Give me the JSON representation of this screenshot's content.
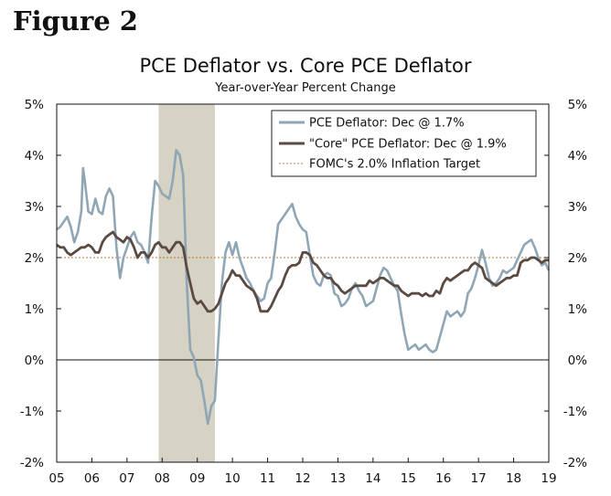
{
  "figure_label": "Figure 2",
  "chart_data": {
    "type": "line",
    "title": "PCE Deflator vs. Core PCE Deflator",
    "subtitle": "Year-over-Year Percent Change",
    "xlabel": "",
    "ylabel": "",
    "x_ticks": [
      "05",
      "06",
      "07",
      "08",
      "09",
      "10",
      "11",
      "12",
      "13",
      "14",
      "15",
      "16",
      "17",
      "18",
      "19"
    ],
    "y_ticks": [
      "5%",
      "4%",
      "3%",
      "2%",
      "1%",
      "0%",
      "-1%",
      "-2%"
    ],
    "xlim": [
      2005.0,
      2019.0
    ],
    "ylim": [
      -2,
      5
    ],
    "grid": false,
    "legend_position": "top-right",
    "recession_shading": {
      "start": 2007.9,
      "end": 2009.5,
      "color": "#d6d2c4"
    },
    "series": [
      {
        "name": "PCE Deflator: Dec @ 1.7%",
        "color": "#8fa6b4",
        "points": [
          [
            2005.0,
            2.55
          ],
          [
            2005.1,
            2.6
          ],
          [
            2005.2,
            2.7
          ],
          [
            2005.3,
            2.8
          ],
          [
            2005.4,
            2.6
          ],
          [
            2005.5,
            2.3
          ],
          [
            2005.6,
            2.5
          ],
          [
            2005.7,
            2.9
          ],
          [
            2005.75,
            3.75
          ],
          [
            2005.8,
            3.5
          ],
          [
            2005.9,
            2.9
          ],
          [
            2006.0,
            2.85
          ],
          [
            2006.1,
            3.15
          ],
          [
            2006.2,
            2.9
          ],
          [
            2006.3,
            2.85
          ],
          [
            2006.4,
            3.2
          ],
          [
            2006.5,
            3.35
          ],
          [
            2006.6,
            3.2
          ],
          [
            2006.7,
            2.2
          ],
          [
            2006.8,
            1.6
          ],
          [
            2006.9,
            2.0
          ],
          [
            2007.0,
            2.2
          ],
          [
            2007.1,
            2.4
          ],
          [
            2007.2,
            2.5
          ],
          [
            2007.3,
            2.3
          ],
          [
            2007.4,
            2.25
          ],
          [
            2007.5,
            2.1
          ],
          [
            2007.6,
            1.9
          ],
          [
            2007.7,
            2.8
          ],
          [
            2007.8,
            3.5
          ],
          [
            2007.9,
            3.4
          ],
          [
            2008.0,
            3.25
          ],
          [
            2008.1,
            3.2
          ],
          [
            2008.2,
            3.15
          ],
          [
            2008.3,
            3.5
          ],
          [
            2008.4,
            4.1
          ],
          [
            2008.5,
            4.0
          ],
          [
            2008.6,
            3.6
          ],
          [
            2008.7,
            1.5
          ],
          [
            2008.8,
            0.2
          ],
          [
            2008.9,
            0.05
          ],
          [
            2009.0,
            -0.3
          ],
          [
            2009.1,
            -0.4
          ],
          [
            2009.2,
            -0.8
          ],
          [
            2009.3,
            -1.25
          ],
          [
            2009.4,
            -0.9
          ],
          [
            2009.5,
            -0.8
          ],
          [
            2009.6,
            0.4
          ],
          [
            2009.7,
            1.5
          ],
          [
            2009.8,
            2.1
          ],
          [
            2009.9,
            2.3
          ],
          [
            2010.0,
            2.05
          ],
          [
            2010.1,
            2.3
          ],
          [
            2010.2,
            2.0
          ],
          [
            2010.3,
            1.8
          ],
          [
            2010.4,
            1.6
          ],
          [
            2010.5,
            1.5
          ],
          [
            2010.6,
            1.35
          ],
          [
            2010.7,
            1.25
          ],
          [
            2010.8,
            1.15
          ],
          [
            2010.9,
            1.2
          ],
          [
            2011.0,
            1.5
          ],
          [
            2011.1,
            1.6
          ],
          [
            2011.2,
            2.1
          ],
          [
            2011.3,
            2.65
          ],
          [
            2011.4,
            2.75
          ],
          [
            2011.5,
            2.85
          ],
          [
            2011.6,
            2.95
          ],
          [
            2011.7,
            3.05
          ],
          [
            2011.8,
            2.8
          ],
          [
            2011.9,
            2.65
          ],
          [
            2012.0,
            2.55
          ],
          [
            2012.1,
            2.5
          ],
          [
            2012.2,
            2.05
          ],
          [
            2012.3,
            1.65
          ],
          [
            2012.4,
            1.5
          ],
          [
            2012.5,
            1.45
          ],
          [
            2012.6,
            1.65
          ],
          [
            2012.7,
            1.7
          ],
          [
            2012.8,
            1.65
          ],
          [
            2012.9,
            1.3
          ],
          [
            2013.0,
            1.25
          ],
          [
            2013.1,
            1.05
          ],
          [
            2013.2,
            1.1
          ],
          [
            2013.3,
            1.2
          ],
          [
            2013.4,
            1.4
          ],
          [
            2013.5,
            1.5
          ],
          [
            2013.6,
            1.35
          ],
          [
            2013.7,
            1.25
          ],
          [
            2013.8,
            1.05
          ],
          [
            2013.9,
            1.1
          ],
          [
            2014.0,
            1.15
          ],
          [
            2014.1,
            1.4
          ],
          [
            2014.2,
            1.65
          ],
          [
            2014.3,
            1.8
          ],
          [
            2014.4,
            1.75
          ],
          [
            2014.5,
            1.6
          ],
          [
            2014.6,
            1.45
          ],
          [
            2014.7,
            1.35
          ],
          [
            2014.8,
            0.9
          ],
          [
            2014.9,
            0.5
          ],
          [
            2015.0,
            0.2
          ],
          [
            2015.1,
            0.25
          ],
          [
            2015.2,
            0.3
          ],
          [
            2015.3,
            0.2
          ],
          [
            2015.4,
            0.25
          ],
          [
            2015.5,
            0.3
          ],
          [
            2015.6,
            0.2
          ],
          [
            2015.7,
            0.15
          ],
          [
            2015.8,
            0.2
          ],
          [
            2015.9,
            0.45
          ],
          [
            2016.0,
            0.7
          ],
          [
            2016.1,
            0.95
          ],
          [
            2016.2,
            0.85
          ],
          [
            2016.3,
            0.9
          ],
          [
            2016.4,
            0.95
          ],
          [
            2016.5,
            0.85
          ],
          [
            2016.6,
            0.95
          ],
          [
            2016.7,
            1.3
          ],
          [
            2016.8,
            1.4
          ],
          [
            2016.9,
            1.6
          ],
          [
            2017.0,
            1.85
          ],
          [
            2017.1,
            2.15
          ],
          [
            2017.2,
            1.9
          ],
          [
            2017.3,
            1.6
          ],
          [
            2017.4,
            1.45
          ],
          [
            2017.5,
            1.5
          ],
          [
            2017.6,
            1.6
          ],
          [
            2017.7,
            1.75
          ],
          [
            2017.8,
            1.7
          ],
          [
            2017.9,
            1.75
          ],
          [
            2018.0,
            1.8
          ],
          [
            2018.1,
            1.95
          ],
          [
            2018.2,
            2.1
          ],
          [
            2018.3,
            2.25
          ],
          [
            2018.4,
            2.3
          ],
          [
            2018.5,
            2.35
          ],
          [
            2018.6,
            2.2
          ],
          [
            2018.7,
            2.0
          ],
          [
            2018.8,
            1.85
          ],
          [
            2018.9,
            1.9
          ],
          [
            2019.0,
            1.75
          ]
        ]
      },
      {
        "name": "\"Core\" PCE Deflator: Dec @ 1.9%",
        "color": "#5a4a42",
        "points": [
          [
            2005.0,
            2.25
          ],
          [
            2005.1,
            2.2
          ],
          [
            2005.2,
            2.2
          ],
          [
            2005.3,
            2.1
          ],
          [
            2005.4,
            2.05
          ],
          [
            2005.5,
            2.1
          ],
          [
            2005.6,
            2.15
          ],
          [
            2005.7,
            2.2
          ],
          [
            2005.8,
            2.2
          ],
          [
            2005.9,
            2.25
          ],
          [
            2006.0,
            2.2
          ],
          [
            2006.1,
            2.1
          ],
          [
            2006.2,
            2.1
          ],
          [
            2006.3,
            2.3
          ],
          [
            2006.4,
            2.4
          ],
          [
            2006.5,
            2.45
          ],
          [
            2006.6,
            2.5
          ],
          [
            2006.7,
            2.4
          ],
          [
            2006.8,
            2.35
          ],
          [
            2006.9,
            2.3
          ],
          [
            2007.0,
            2.4
          ],
          [
            2007.1,
            2.35
          ],
          [
            2007.2,
            2.2
          ],
          [
            2007.3,
            2.0
          ],
          [
            2007.4,
            2.1
          ],
          [
            2007.5,
            2.1
          ],
          [
            2007.6,
            2.0
          ],
          [
            2007.7,
            2.1
          ],
          [
            2007.8,
            2.25
          ],
          [
            2007.9,
            2.3
          ],
          [
            2008.0,
            2.2
          ],
          [
            2008.1,
            2.2
          ],
          [
            2008.2,
            2.1
          ],
          [
            2008.3,
            2.2
          ],
          [
            2008.4,
            2.3
          ],
          [
            2008.5,
            2.3
          ],
          [
            2008.6,
            2.2
          ],
          [
            2008.7,
            1.8
          ],
          [
            2008.8,
            1.5
          ],
          [
            2008.9,
            1.2
          ],
          [
            2009.0,
            1.1
          ],
          [
            2009.1,
            1.15
          ],
          [
            2009.2,
            1.05
          ],
          [
            2009.3,
            0.95
          ],
          [
            2009.4,
            0.95
          ],
          [
            2009.5,
            1.0
          ],
          [
            2009.6,
            1.1
          ],
          [
            2009.7,
            1.3
          ],
          [
            2009.8,
            1.5
          ],
          [
            2009.9,
            1.6
          ],
          [
            2010.0,
            1.75
          ],
          [
            2010.1,
            1.65
          ],
          [
            2010.2,
            1.65
          ],
          [
            2010.3,
            1.55
          ],
          [
            2010.4,
            1.45
          ],
          [
            2010.5,
            1.4
          ],
          [
            2010.6,
            1.35
          ],
          [
            2010.7,
            1.2
          ],
          [
            2010.8,
            0.95
          ],
          [
            2010.9,
            0.95
          ],
          [
            2011.0,
            0.95
          ],
          [
            2011.1,
            1.05
          ],
          [
            2011.2,
            1.2
          ],
          [
            2011.3,
            1.35
          ],
          [
            2011.4,
            1.45
          ],
          [
            2011.5,
            1.65
          ],
          [
            2011.6,
            1.8
          ],
          [
            2011.7,
            1.85
          ],
          [
            2011.8,
            1.85
          ],
          [
            2011.9,
            1.9
          ],
          [
            2012.0,
            2.1
          ],
          [
            2012.1,
            2.1
          ],
          [
            2012.2,
            2.05
          ],
          [
            2012.3,
            1.9
          ],
          [
            2012.4,
            1.85
          ],
          [
            2012.5,
            1.75
          ],
          [
            2012.6,
            1.65
          ],
          [
            2012.7,
            1.6
          ],
          [
            2012.8,
            1.6
          ],
          [
            2012.9,
            1.5
          ],
          [
            2013.0,
            1.45
          ],
          [
            2013.1,
            1.35
          ],
          [
            2013.2,
            1.3
          ],
          [
            2013.3,
            1.35
          ],
          [
            2013.4,
            1.4
          ],
          [
            2013.5,
            1.45
          ],
          [
            2013.6,
            1.45
          ],
          [
            2013.7,
            1.45
          ],
          [
            2013.8,
            1.45
          ],
          [
            2013.9,
            1.55
          ],
          [
            2014.0,
            1.5
          ],
          [
            2014.1,
            1.55
          ],
          [
            2014.2,
            1.6
          ],
          [
            2014.3,
            1.6
          ],
          [
            2014.4,
            1.55
          ],
          [
            2014.5,
            1.5
          ],
          [
            2014.6,
            1.45
          ],
          [
            2014.7,
            1.45
          ],
          [
            2014.8,
            1.35
          ],
          [
            2014.9,
            1.3
          ],
          [
            2015.0,
            1.25
          ],
          [
            2015.1,
            1.3
          ],
          [
            2015.2,
            1.3
          ],
          [
            2015.3,
            1.3
          ],
          [
            2015.4,
            1.25
          ],
          [
            2015.5,
            1.3
          ],
          [
            2015.6,
            1.25
          ],
          [
            2015.7,
            1.25
          ],
          [
            2015.8,
            1.35
          ],
          [
            2015.9,
            1.3
          ],
          [
            2016.0,
            1.5
          ],
          [
            2016.1,
            1.6
          ],
          [
            2016.2,
            1.55
          ],
          [
            2016.3,
            1.6
          ],
          [
            2016.4,
            1.65
          ],
          [
            2016.5,
            1.7
          ],
          [
            2016.6,
            1.75
          ],
          [
            2016.7,
            1.75
          ],
          [
            2016.8,
            1.85
          ],
          [
            2016.9,
            1.9
          ],
          [
            2017.0,
            1.85
          ],
          [
            2017.1,
            1.8
          ],
          [
            2017.2,
            1.6
          ],
          [
            2017.3,
            1.55
          ],
          [
            2017.4,
            1.5
          ],
          [
            2017.5,
            1.45
          ],
          [
            2017.6,
            1.5
          ],
          [
            2017.7,
            1.55
          ],
          [
            2017.8,
            1.6
          ],
          [
            2017.9,
            1.6
          ],
          [
            2018.0,
            1.65
          ],
          [
            2018.1,
            1.65
          ],
          [
            2018.2,
            1.9
          ],
          [
            2018.3,
            1.95
          ],
          [
            2018.4,
            1.95
          ],
          [
            2018.5,
            2.0
          ],
          [
            2018.6,
            2.0
          ],
          [
            2018.7,
            1.95
          ],
          [
            2018.8,
            1.9
          ],
          [
            2018.9,
            1.95
          ],
          [
            2019.0,
            1.95
          ]
        ]
      }
    ],
    "reference_line": {
      "name": "FOMC's 2.0% Inflation Target",
      "value": 2.0,
      "color": "#c0763a"
    }
  }
}
